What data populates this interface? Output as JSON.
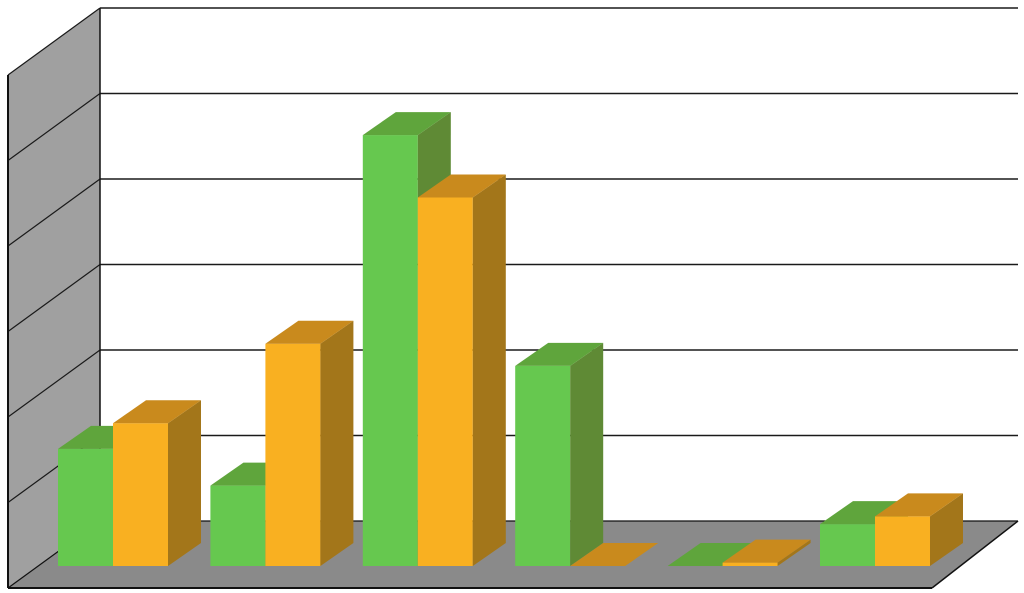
{
  "chart_data": {
    "type": "bar",
    "categories": [
      "",
      "",
      "",
      "",
      "",
      ""
    ],
    "series": [
      {
        "color": "#66c84f",
        "side_color": "#5f8a35",
        "top_color": "#5fa53c",
        "values": [
          13.7,
          9.4,
          50.4,
          23.4,
          0.0,
          4.9
        ]
      },
      {
        "color": "#f9b021",
        "side_color": "#a3761a",
        "top_color": "#c98a1d",
        "values": [
          16.7,
          26.0,
          43.1,
          0.0,
          0.4,
          5.8
        ]
      }
    ],
    "ylim": [
      0,
      60
    ],
    "grid": true,
    "legend": "none",
    "wall_color": "#a0a0a0",
    "floor_color": "#8a8a8a",
    "gridline_color": "#1a1a1a"
  }
}
